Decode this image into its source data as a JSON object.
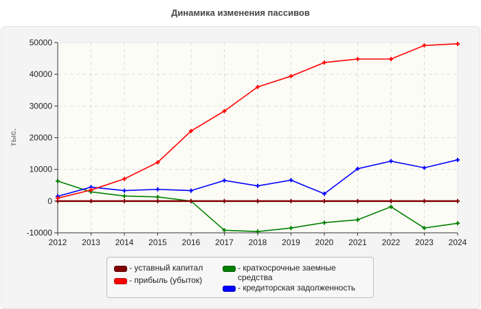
{
  "chart_data": {
    "type": "line",
    "title": "Динамика изменения пассивов",
    "xlabel": "",
    "ylabel": "тыс.",
    "x": [
      2012,
      2013,
      2014,
      2015,
      2016,
      2017,
      2018,
      2019,
      2020,
      2021,
      2022,
      2023,
      2024
    ],
    "ylim": [
      -10000,
      50000
    ],
    "yticks": [
      -10000,
      0,
      10000,
      20000,
      30000,
      40000,
      50000
    ],
    "grid": true,
    "legend_position": "bottom",
    "series": [
      {
        "name": "- уставный капитал",
        "color": "#800000",
        "values": [
          0,
          0,
          0,
          0,
          0,
          0,
          0,
          0,
          0,
          0,
          0,
          0,
          0
        ]
      },
      {
        "name": "- прибыль (убыток)",
        "color": "#ff0000",
        "values": [
          900,
          3500,
          7000,
          12200,
          22100,
          28400,
          36000,
          39400,
          43700,
          44800,
          44800,
          49100,
          49600
        ]
      },
      {
        "name": "- краткосрочные заемные средства",
        "color": "#008000",
        "values": [
          6300,
          2900,
          1600,
          1300,
          0,
          -9200,
          -9600,
          -8500,
          -6800,
          -5900,
          -1800,
          -8500,
          -7000
        ]
      },
      {
        "name": "- кредиторская задолженность",
        "color": "#0000ff",
        "values": [
          1500,
          4400,
          3300,
          3700,
          3300,
          6500,
          4800,
          6600,
          2300,
          10200,
          12600,
          10500,
          13000
        ]
      }
    ]
  }
}
